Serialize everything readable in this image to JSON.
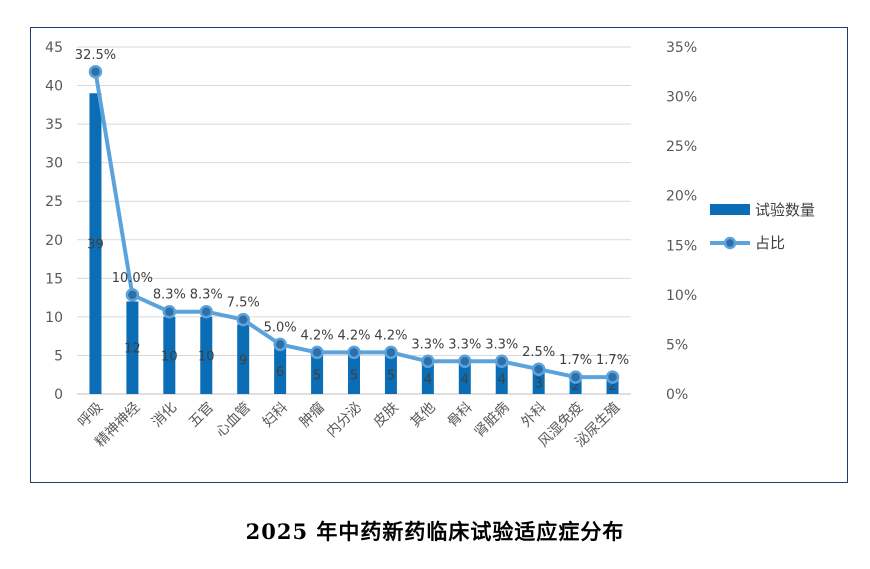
{
  "chart_data": {
    "type": "bar",
    "title": "2025 年中药新药临床试验适应症分布",
    "categories": [
      "呼吸",
      "精神神经",
      "消化",
      "五官",
      "心血管",
      "妇科",
      "肿瘤",
      "内分泌",
      "皮肤",
      "其他",
      "骨科",
      "肾脏病",
      "外科",
      "风湿免疫",
      "泌尿生殖"
    ],
    "series": [
      {
        "name": "试验数量",
        "type": "bar",
        "axis": "left",
        "color": "#0a6db5",
        "values": [
          39,
          12,
          10,
          10,
          9,
          6,
          5,
          5,
          5,
          4,
          4,
          4,
          3,
          2,
          2
        ]
      },
      {
        "name": "占比",
        "type": "line",
        "axis": "right",
        "color": "#5ba3dc",
        "values": [
          32.5,
          10.0,
          8.3,
          8.3,
          7.5,
          5.0,
          4.2,
          4.2,
          4.2,
          3.3,
          3.3,
          3.3,
          2.5,
          1.7,
          1.7
        ],
        "labels": [
          "32.5%",
          "10.0%",
          "8.3%",
          "8.3%",
          "7.5%",
          "5.0%",
          "4.2%",
          "4.2%",
          "4.2%",
          "3.3%",
          "3.3%",
          "3.3%",
          "2.5%",
          "1.7%",
          "1.7%"
        ]
      }
    ],
    "y_left": {
      "range": [
        0,
        45
      ],
      "ticks": [
        0,
        5,
        10,
        15,
        20,
        25,
        30,
        35,
        40,
        45
      ],
      "tick_labels": [
        "0",
        "5",
        "10",
        "15",
        "20",
        "25",
        "30",
        "35",
        "40",
        "45"
      ]
    },
    "y_right": {
      "range": [
        0,
        35
      ],
      "ticks": [
        0,
        5,
        10,
        15,
        20,
        25,
        30,
        35
      ],
      "tick_labels": [
        "0%",
        "5%",
        "10%",
        "15%",
        "20%",
        "25%",
        "30%",
        "35%"
      ]
    },
    "grid": true,
    "legend": "right"
  }
}
